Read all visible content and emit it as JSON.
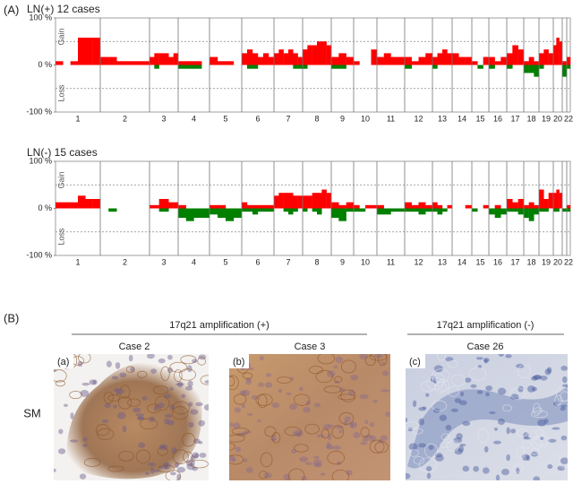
{
  "panel_a_label": "(A)",
  "chart_data": [
    {
      "type": "bar",
      "title": "LN(+) 12 cases",
      "gain_label": "Gain",
      "loss_label": "Loss",
      "categories": [
        "1",
        "2",
        "3",
        "4",
        "5",
        "6",
        "7",
        "8",
        "9",
        "10",
        "11",
        "12",
        "13",
        "14",
        "15",
        "16",
        "17",
        "18",
        "19",
        "20",
        null,
        "22"
      ],
      "gain": [
        [
          8,
          0,
          8,
          58,
          58,
          58
        ],
        [
          17,
          17,
          8,
          8,
          8,
          8
        ],
        [
          17,
          25,
          25,
          25,
          17,
          25
        ],
        [
          8,
          8,
          8,
          0
        ],
        [
          17,
          8,
          8,
          0
        ],
        [
          25,
          33,
          25,
          17,
          25,
          17
        ],
        [
          25,
          33,
          25,
          33,
          25,
          17
        ],
        [
          33,
          42,
          42,
          50,
          50,
          42
        ],
        [
          17,
          25,
          17
        ],
        [
          8,
          0,
          0,
          33
        ],
        [
          17,
          25,
          17,
          17
        ],
        [
          17,
          8,
          17,
          25
        ],
        [
          17,
          25,
          33,
          25
        ],
        [
          25,
          17,
          17
        ],
        [
          8,
          0,
          17
        ],
        [
          17,
          8,
          17
        ],
        [
          25,
          42,
          33
        ],
        [
          8,
          17,
          8
        ],
        [
          25,
          33,
          25
        ],
        [
          42,
          58,
          50
        ],
        [
          8
        ],
        [
          17
        ]
      ],
      "loss": [
        [
          0,
          0,
          0,
          0,
          0,
          0
        ],
        [
          0,
          0,
          0,
          0,
          0,
          0
        ],
        [
          0,
          -8,
          0,
          0,
          0,
          0
        ],
        [
          -8,
          -8,
          -8,
          0
        ],
        [
          0,
          0,
          0,
          0
        ],
        [
          0,
          -8,
          -8,
          0,
          0,
          0
        ],
        [
          0,
          0,
          0,
          0,
          -8,
          -8
        ],
        [
          -8,
          0,
          0,
          0,
          0,
          0
        ],
        [
          -8,
          -8,
          0
        ],
        [
          0,
          0,
          0,
          0
        ],
        [
          0,
          0,
          0,
          0
        ],
        [
          -8,
          0,
          0,
          0
        ],
        [
          -8,
          0,
          0,
          0
        ],
        [
          0,
          0,
          0
        ],
        [
          0,
          -8,
          0
        ],
        [
          -8,
          0,
          0
        ],
        [
          -8,
          0,
          0
        ],
        [
          -17,
          -17,
          -25
        ],
        [
          -8,
          0,
          0
        ],
        [
          0,
          0,
          0
        ],
        [
          -25
        ],
        [
          -8
        ]
      ],
      "gain_color": "#ff0000",
      "loss_color": "#008000",
      "ylim": [
        -100,
        100
      ],
      "yticks": [
        {
          "value": 100,
          "label": "100 %"
        },
        {
          "value": 0,
          "label": "0 %"
        },
        {
          "value": -100,
          "label": "-100 %"
        }
      ],
      "dashed_lines": [
        50,
        -50
      ]
    },
    {
      "type": "bar",
      "title": "LN(-) 15 cases",
      "gain_label": "Gain",
      "loss_label": "Loss",
      "categories": [
        "1",
        "2",
        "3",
        "4",
        "5",
        "6",
        "7",
        "8",
        "9",
        "10",
        "11",
        "12",
        "13",
        "14",
        "15",
        "16",
        "17",
        "18",
        "19",
        "20",
        null,
        "22"
      ],
      "gain": [
        [
          13,
          13,
          13,
          27,
          20,
          20
        ],
        [
          0,
          0,
          0,
          0,
          0,
          0
        ],
        [
          7,
          7,
          20,
          20,
          13,
          13
        ],
        [
          7,
          0,
          0,
          0
        ],
        [
          7,
          7,
          0,
          0
        ],
        [
          13,
          7,
          7,
          7,
          7,
          7
        ],
        [
          27,
          33,
          33,
          33,
          27,
          27
        ],
        [
          27,
          27,
          33,
          33,
          40,
          33
        ],
        [
          13,
          7,
          13
        ],
        [
          7,
          0,
          7,
          7
        ],
        [
          7,
          0,
          0,
          0
        ],
        [
          13,
          7,
          13,
          7
        ],
        [
          13,
          7,
          0,
          7
        ],
        [
          0,
          0,
          7
        ],
        [
          0,
          0,
          7
        ],
        [
          0,
          7,
          0
        ],
        [
          20,
          13,
          20
        ],
        [
          7,
          13,
          7
        ],
        [
          40,
          20,
          33
        ],
        [
          33,
          40,
          33
        ],
        [
          0
        ],
        [
          7
        ]
      ],
      "loss": [
        [
          0,
          0,
          0,
          0,
          0,
          0
        ],
        [
          0,
          -7,
          0,
          0,
          0,
          0
        ],
        [
          0,
          0,
          -7,
          -7,
          0,
          0
        ],
        [
          -20,
          -27,
          -20,
          -20
        ],
        [
          -13,
          -20,
          -27,
          -20
        ],
        [
          -7,
          -7,
          -13,
          -7,
          -7,
          -7
        ],
        [
          0,
          0,
          -7,
          -13,
          -7,
          0
        ],
        [
          -7,
          0,
          -7,
          -13,
          0,
          0
        ],
        [
          -20,
          -27,
          -7
        ],
        [
          -7,
          -7,
          0,
          0
        ],
        [
          -13,
          -13,
          -7,
          -7
        ],
        [
          -7,
          -7,
          -13,
          -7
        ],
        [
          -7,
          -13,
          -7,
          0
        ],
        [
          0,
          0,
          0
        ],
        [
          -7,
          0,
          0
        ],
        [
          -13,
          -20,
          -13
        ],
        [
          -7,
          -7,
          -13
        ],
        [
          -20,
          -27,
          -13
        ],
        [
          -7,
          -7,
          0
        ],
        [
          -7,
          -7,
          0
        ],
        [
          -7
        ],
        [
          -7
        ]
      ],
      "gain_color": "#ff0000",
      "loss_color": "#008000",
      "ylim": [
        -100,
        100
      ],
      "yticks": [
        {
          "value": 100,
          "label": "100 %"
        },
        {
          "value": 0,
          "label": "0 %"
        },
        {
          "value": -100,
          "label": "-100 %"
        }
      ],
      "dashed_lines": [
        50,
        -50
      ]
    }
  ],
  "panel_b": {
    "label": "(B)",
    "group_pos": "17q21 amplification (+)",
    "group_neg": "17q21 amplification (-)",
    "row_label": "SM",
    "images": [
      {
        "tag": "(a)",
        "case": "Case 2"
      },
      {
        "tag": "(b)",
        "case": "Case 3"
      },
      {
        "tag": "(c)",
        "case": "Case 26"
      }
    ]
  }
}
